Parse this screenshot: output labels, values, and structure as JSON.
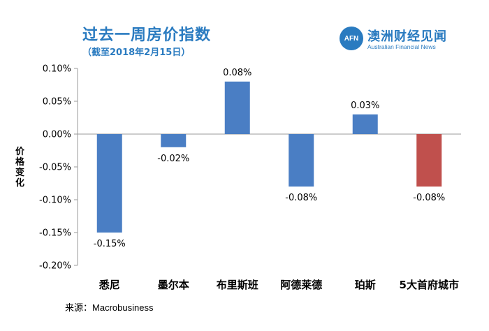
{
  "title": "过去一周房价指数",
  "subtitle": "（截至2018年2月15日）",
  "logo": {
    "mark": "AFN",
    "name_cn": "澳洲财经见闻",
    "name_en": "Australian Financial News"
  },
  "source_label": "来源：",
  "source_value": "Macrobusiness",
  "colors": {
    "bar": "#4a7ec4",
    "bar_highlight": "#c0504d",
    "axis": "#999999",
    "title": "#2a7bc0"
  },
  "chart_data": {
    "type": "bar",
    "title": "过去一周房价指数",
    "subtitle": "（截至2018年2月15日）",
    "ylabel": "价格变化",
    "xlabel": "",
    "categories": [
      "悉尼",
      "墨尔本",
      "布里斯班",
      "阿德莱德",
      "珀斯",
      "5大首府城市"
    ],
    "values": [
      -0.15,
      -0.02,
      0.08,
      -0.08,
      0.03,
      -0.08
    ],
    "data_labels": [
      "-0.15%",
      "-0.02%",
      "0.08%",
      "-0.08%",
      "0.03%",
      "-0.08%"
    ],
    "highlight_index": 5,
    "ylim": [
      -0.2,
      0.1
    ],
    "yticks": [
      0.1,
      0.05,
      0.0,
      -0.05,
      -0.1,
      -0.15,
      -0.2
    ],
    "ytick_labels": [
      "0.10%",
      "0.05%",
      "0.00%",
      "-0.05%",
      "-0.10%",
      "-0.15%",
      "-0.20%"
    ],
    "grid": false,
    "legend": "none"
  }
}
